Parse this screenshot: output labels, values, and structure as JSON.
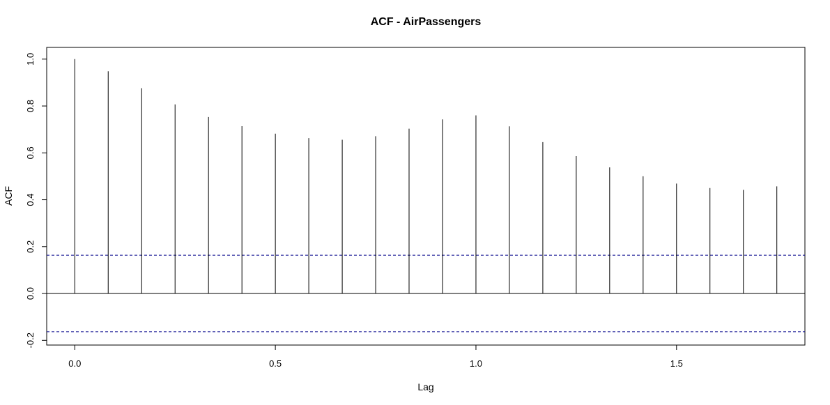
{
  "chart_data": {
    "type": "bar",
    "title": "ACF - AirPassengers",
    "xlabel": "Lag",
    "ylabel": "ACF",
    "lags": [
      0,
      0.0833,
      0.1667,
      0.25,
      0.3333,
      0.4167,
      0.5,
      0.5833,
      0.6667,
      0.75,
      0.8333,
      0.9167,
      1.0,
      1.0833,
      1.1667,
      1.25,
      1.3333,
      1.4167,
      1.5,
      1.5833,
      1.6667,
      1.75
    ],
    "values": [
      1.0,
      0.948,
      0.876,
      0.807,
      0.753,
      0.714,
      0.682,
      0.663,
      0.656,
      0.671,
      0.703,
      0.743,
      0.76,
      0.713,
      0.646,
      0.586,
      0.538,
      0.5,
      0.469,
      0.45,
      0.442,
      0.457
    ],
    "confidence_bound": 0.1633,
    "xlim": [
      -0.07,
      1.82
    ],
    "ylim": [
      -0.22,
      1.05
    ],
    "xticks": [
      0.0,
      0.5,
      1.0,
      1.5
    ],
    "yticks": [
      -0.2,
      0.0,
      0.2,
      0.4,
      0.6,
      0.8,
      1.0
    ],
    "xtick_labels": [
      "0.0",
      "0.5",
      "1.0",
      "1.5"
    ],
    "ytick_labels": [
      "-0.2",
      "0.0",
      "0.2",
      "0.4",
      "0.6",
      "0.8",
      "1.0"
    ],
    "colors": {
      "bars": "#000000",
      "bounds": "#00008b",
      "zero_line": "#000000"
    },
    "grid": false
  }
}
